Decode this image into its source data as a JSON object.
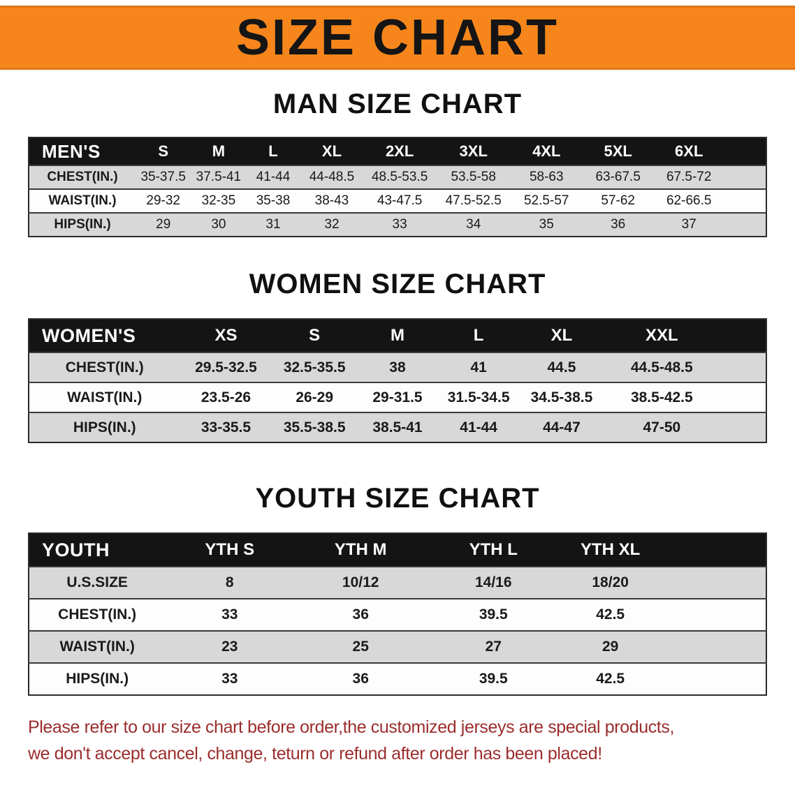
{
  "banner": {
    "title": "SIZE CHART"
  },
  "sections": [
    {
      "heading": "MAN SIZE CHART",
      "table": {
        "header": [
          "MEN'S",
          "S",
          "M",
          "L",
          "XL",
          "2XL",
          "3XL",
          "4XL",
          "5XL",
          "6XL"
        ],
        "rows": [
          [
            "CHEST(IN.)",
            "35-37.5",
            "37.5-41",
            "41-44",
            "44-48.5",
            "48.5-53.5",
            "53.5-58",
            "58-63",
            "63-67.5",
            "67.5-72"
          ],
          [
            "WAIST(IN.)",
            "29-32",
            "32-35",
            "35-38",
            "38-43",
            "43-47.5",
            "47.5-52.5",
            "52.5-57",
            "57-62",
            "62-66.5"
          ],
          [
            "HIPS(IN.)",
            "29",
            "30",
            "31",
            "32",
            "33",
            "34",
            "35",
            "36",
            "37"
          ]
        ]
      }
    },
    {
      "heading": "WOMEN SIZE CHART",
      "table": {
        "header": [
          "WOMEN'S",
          "XS",
          "S",
          "M",
          "L",
          "XL",
          "XXL"
        ],
        "rows": [
          [
            "CHEST(IN.)",
            "29.5-32.5",
            "32.5-35.5",
            "38",
            "41",
            "44.5",
            "44.5-48.5"
          ],
          [
            "WAIST(IN.)",
            "23.5-26",
            "26-29",
            "29-31.5",
            "31.5-34.5",
            "34.5-38.5",
            "38.5-42.5"
          ],
          [
            "HIPS(IN.)",
            "33-35.5",
            "35.5-38.5",
            "38.5-41",
            "41-44",
            "44-47",
            "47-50"
          ]
        ]
      }
    },
    {
      "heading": "YOUTH SIZE CHART",
      "table": {
        "header": [
          "YOUTH",
          "YTH S",
          "YTH M",
          "YTH L",
          "YTH XL"
        ],
        "rows": [
          [
            "U.S.SIZE",
            "8",
            "10/12",
            "14/16",
            "18/20"
          ],
          [
            "CHEST(IN.)",
            "33",
            "36",
            "39.5",
            "42.5"
          ],
          [
            "WAIST(IN.)",
            "23",
            "25",
            "27",
            "29"
          ],
          [
            "HIPS(IN.)",
            "33",
            "36",
            "39.5",
            "42.5"
          ]
        ]
      }
    }
  ],
  "footer_note": {
    "line1": "Please refer to our size chart before order,the customized jerseys are special products,",
    "line2": "we don't accept cancel, change, teturn or refund after order has been placed!"
  },
  "colors": {
    "banner_bg": "#f6861c",
    "banner_text": "#151515",
    "table_header_bg": "#141414",
    "table_header_text": "#ffffff",
    "row_stripe": "#d8d8d8",
    "note_text": "#9b2d2d"
  }
}
